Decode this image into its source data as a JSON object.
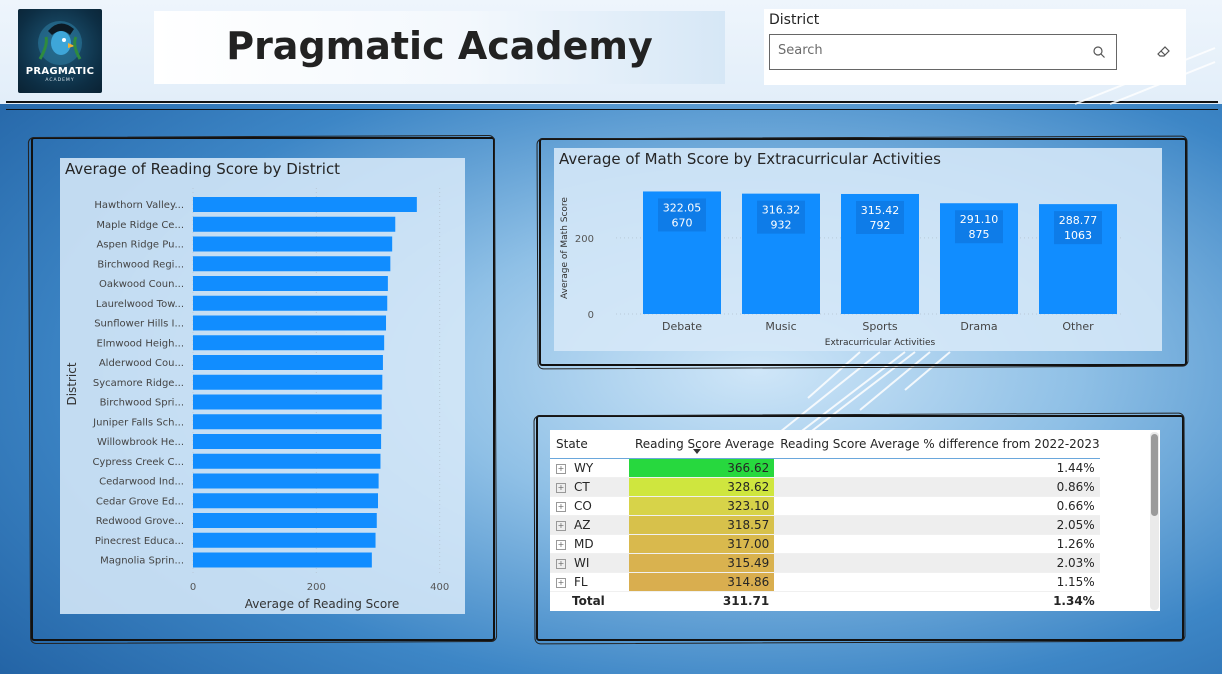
{
  "header": {
    "title": "Pragmatic Academy",
    "logo_text": "PRAGMATIC",
    "logo_subtext": "ACADEMY"
  },
  "slicer": {
    "title": "District",
    "search_placeholder": "Search",
    "search_icon": "search-icon",
    "clear_icon": "eraser-icon"
  },
  "reading_chart": {
    "title": "Average of Reading Score by District",
    "xlabel": "Average of Reading Score",
    "ylabel": "District",
    "bar_color": "#118dff"
  },
  "math_chart": {
    "title": "Average of Math Score by Extracurricular Activities",
    "xlabel": "Extracurricular Activities",
    "ylabel": "Average of Math Score",
    "bar_color": "#118dff",
    "label_bg": "#0d6fd6"
  },
  "chart_data": [
    {
      "type": "bar",
      "orientation": "horizontal",
      "title": "Average of Reading Score by District",
      "xlabel": "Average of Reading Score",
      "ylabel": "District",
      "xlim": [
        0,
        420
      ],
      "xticks": [
        "0",
        "200",
        "400"
      ],
      "grid": true,
      "categories": [
        "Hawthorn Valley...",
        "Maple Ridge Ce...",
        "Aspen Ridge Pu...",
        "Birchwood Regi...",
        "Oakwood Coun...",
        "Laurelwood Tow...",
        "Sunflower Hills I...",
        "Elmwood Heigh...",
        "Alderwood Cou...",
        "Sycamore Ridge...",
        "Birchwood Spri...",
        "Juniper Falls Sch...",
        "Willowbrook He...",
        "Cypress Creek C...",
        "Cedarwood Ind...",
        "Cedar Grove Ed...",
        "Redwood Grove...",
        "Pinecrest Educa...",
        "Magnolia Sprin..."
      ],
      "values": [
        363,
        328,
        323,
        320,
        316,
        315,
        313,
        310,
        308,
        307,
        306,
        306,
        305,
        304,
        301,
        300,
        298,
        296,
        290
      ]
    },
    {
      "type": "bar",
      "title": "Average of Math Score by Extracurricular Activities",
      "xlabel": "Extracurricular Activities",
      "ylabel": "Average of Math Score",
      "ylim": [
        0,
        345
      ],
      "yticks": [
        "0",
        "200"
      ],
      "grid": true,
      "categories": [
        "Debate",
        "Music",
        "Sports",
        "Drama",
        "Other"
      ],
      "values": [
        322.05,
        316.32,
        315.42,
        291.1,
        288.77
      ],
      "value_labels": [
        "322.05",
        "316.32",
        "315.42",
        "291.10",
        "288.77"
      ],
      "count_labels": [
        "670",
        "932",
        "792",
        "875",
        "1063"
      ]
    },
    {
      "type": "table",
      "columns": [
        "State",
        "Reading Score Average",
        "Reading Score Average % difference from 2022-2023"
      ],
      "rows": [
        {
          "state": "WY",
          "avg": "366.62",
          "diff": "1.44%",
          "color": "#27d83e"
        },
        {
          "state": "CT",
          "avg": "328.62",
          "diff": "0.86%",
          "color": "#cfe63e"
        },
        {
          "state": "CO",
          "avg": "323.10",
          "diff": "0.66%",
          "color": "#d7d349"
        },
        {
          "state": "AZ",
          "avg": "318.57",
          "diff": "2.05%",
          "color": "#d7c14b"
        },
        {
          "state": "MD",
          "avg": "317.00",
          "diff": "1.26%",
          "color": "#d9b94d"
        },
        {
          "state": "WI",
          "avg": "315.49",
          "diff": "2.03%",
          "color": "#d9b24f"
        },
        {
          "state": "FL",
          "avg": "314.86",
          "diff": "1.15%",
          "color": "#d9ae4f"
        }
      ],
      "total": {
        "label": "Total",
        "avg": "311.71",
        "diff": "1.34%"
      }
    }
  ]
}
